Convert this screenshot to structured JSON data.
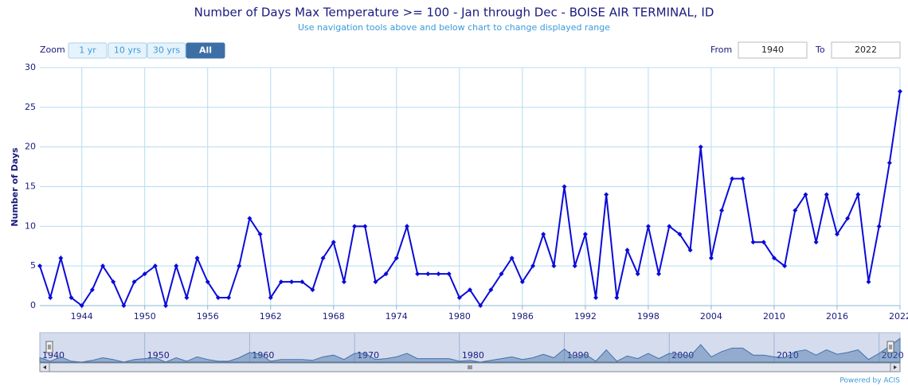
{
  "chart_data": {
    "type": "line",
    "title": "Number of Days Max Temperature >= 100 - Jan through Dec - BOISE AIR TERMINAL, ID",
    "subtitle": "Use navigation tools above and below chart to change displayed range",
    "y_label": "Number of Days",
    "color": "#0b0bd9",
    "x": [
      1940,
      1941,
      1942,
      1943,
      1944,
      1945,
      1946,
      1947,
      1948,
      1949,
      1950,
      1951,
      1952,
      1953,
      1954,
      1955,
      1956,
      1957,
      1958,
      1959,
      1960,
      1961,
      1962,
      1963,
      1964,
      1965,
      1966,
      1967,
      1968,
      1969,
      1970,
      1971,
      1972,
      1973,
      1974,
      1975,
      1976,
      1977,
      1978,
      1979,
      1980,
      1981,
      1982,
      1983,
      1984,
      1985,
      1986,
      1987,
      1988,
      1989,
      1990,
      1991,
      1992,
      1993,
      1994,
      1995,
      1996,
      1997,
      1998,
      1999,
      2000,
      2001,
      2002,
      2003,
      2004,
      2005,
      2006,
      2007,
      2008,
      2009,
      2010,
      2011,
      2012,
      2013,
      2014,
      2015,
      2016,
      2017,
      2018,
      2019,
      2020,
      2021,
      2022
    ],
    "values": [
      5,
      1,
      6,
      1,
      0,
      2,
      5,
      3,
      0,
      3,
      4,
      5,
      0,
      5,
      1,
      6,
      3,
      1,
      1,
      5,
      11,
      9,
      1,
      3,
      3,
      3,
      2,
      6,
      8,
      3,
      10,
      10,
      3,
      4,
      6,
      10,
      4,
      4,
      4,
      4,
      1,
      2,
      0,
      2,
      4,
      6,
      3,
      5,
      9,
      5,
      15,
      5,
      9,
      1,
      14,
      1,
      7,
      4,
      10,
      4,
      10,
      9,
      7,
      20,
      6,
      12,
      16,
      16,
      8,
      8,
      6,
      5,
      12,
      14,
      8,
      14,
      9,
      11,
      14,
      3,
      10,
      18,
      27
    ],
    "xlim": [
      1940,
      2022
    ],
    "xticks": [
      1944,
      1950,
      1956,
      1962,
      1968,
      1974,
      1980,
      1986,
      1992,
      1998,
      2004,
      2010,
      2016,
      2022
    ],
    "ylim": [
      0,
      30
    ],
    "yticks": [
      0,
      5,
      10,
      15,
      20,
      25,
      30
    ],
    "grid": true,
    "navigator": {
      "xticks": [
        1940,
        1950,
        1960,
        1970,
        1980,
        1990,
        2000,
        2010,
        2020
      ],
      "color": "#4572a7"
    },
    "zoom": {
      "label": "Zoom",
      "buttons": [
        "1 yr",
        "10 yrs",
        "30 yrs",
        "All"
      ],
      "selected": 3
    },
    "range": {
      "from_label": "From",
      "from": "1940",
      "to_label": "To",
      "to": "2022"
    },
    "credit": "Powered by ACIS"
  }
}
